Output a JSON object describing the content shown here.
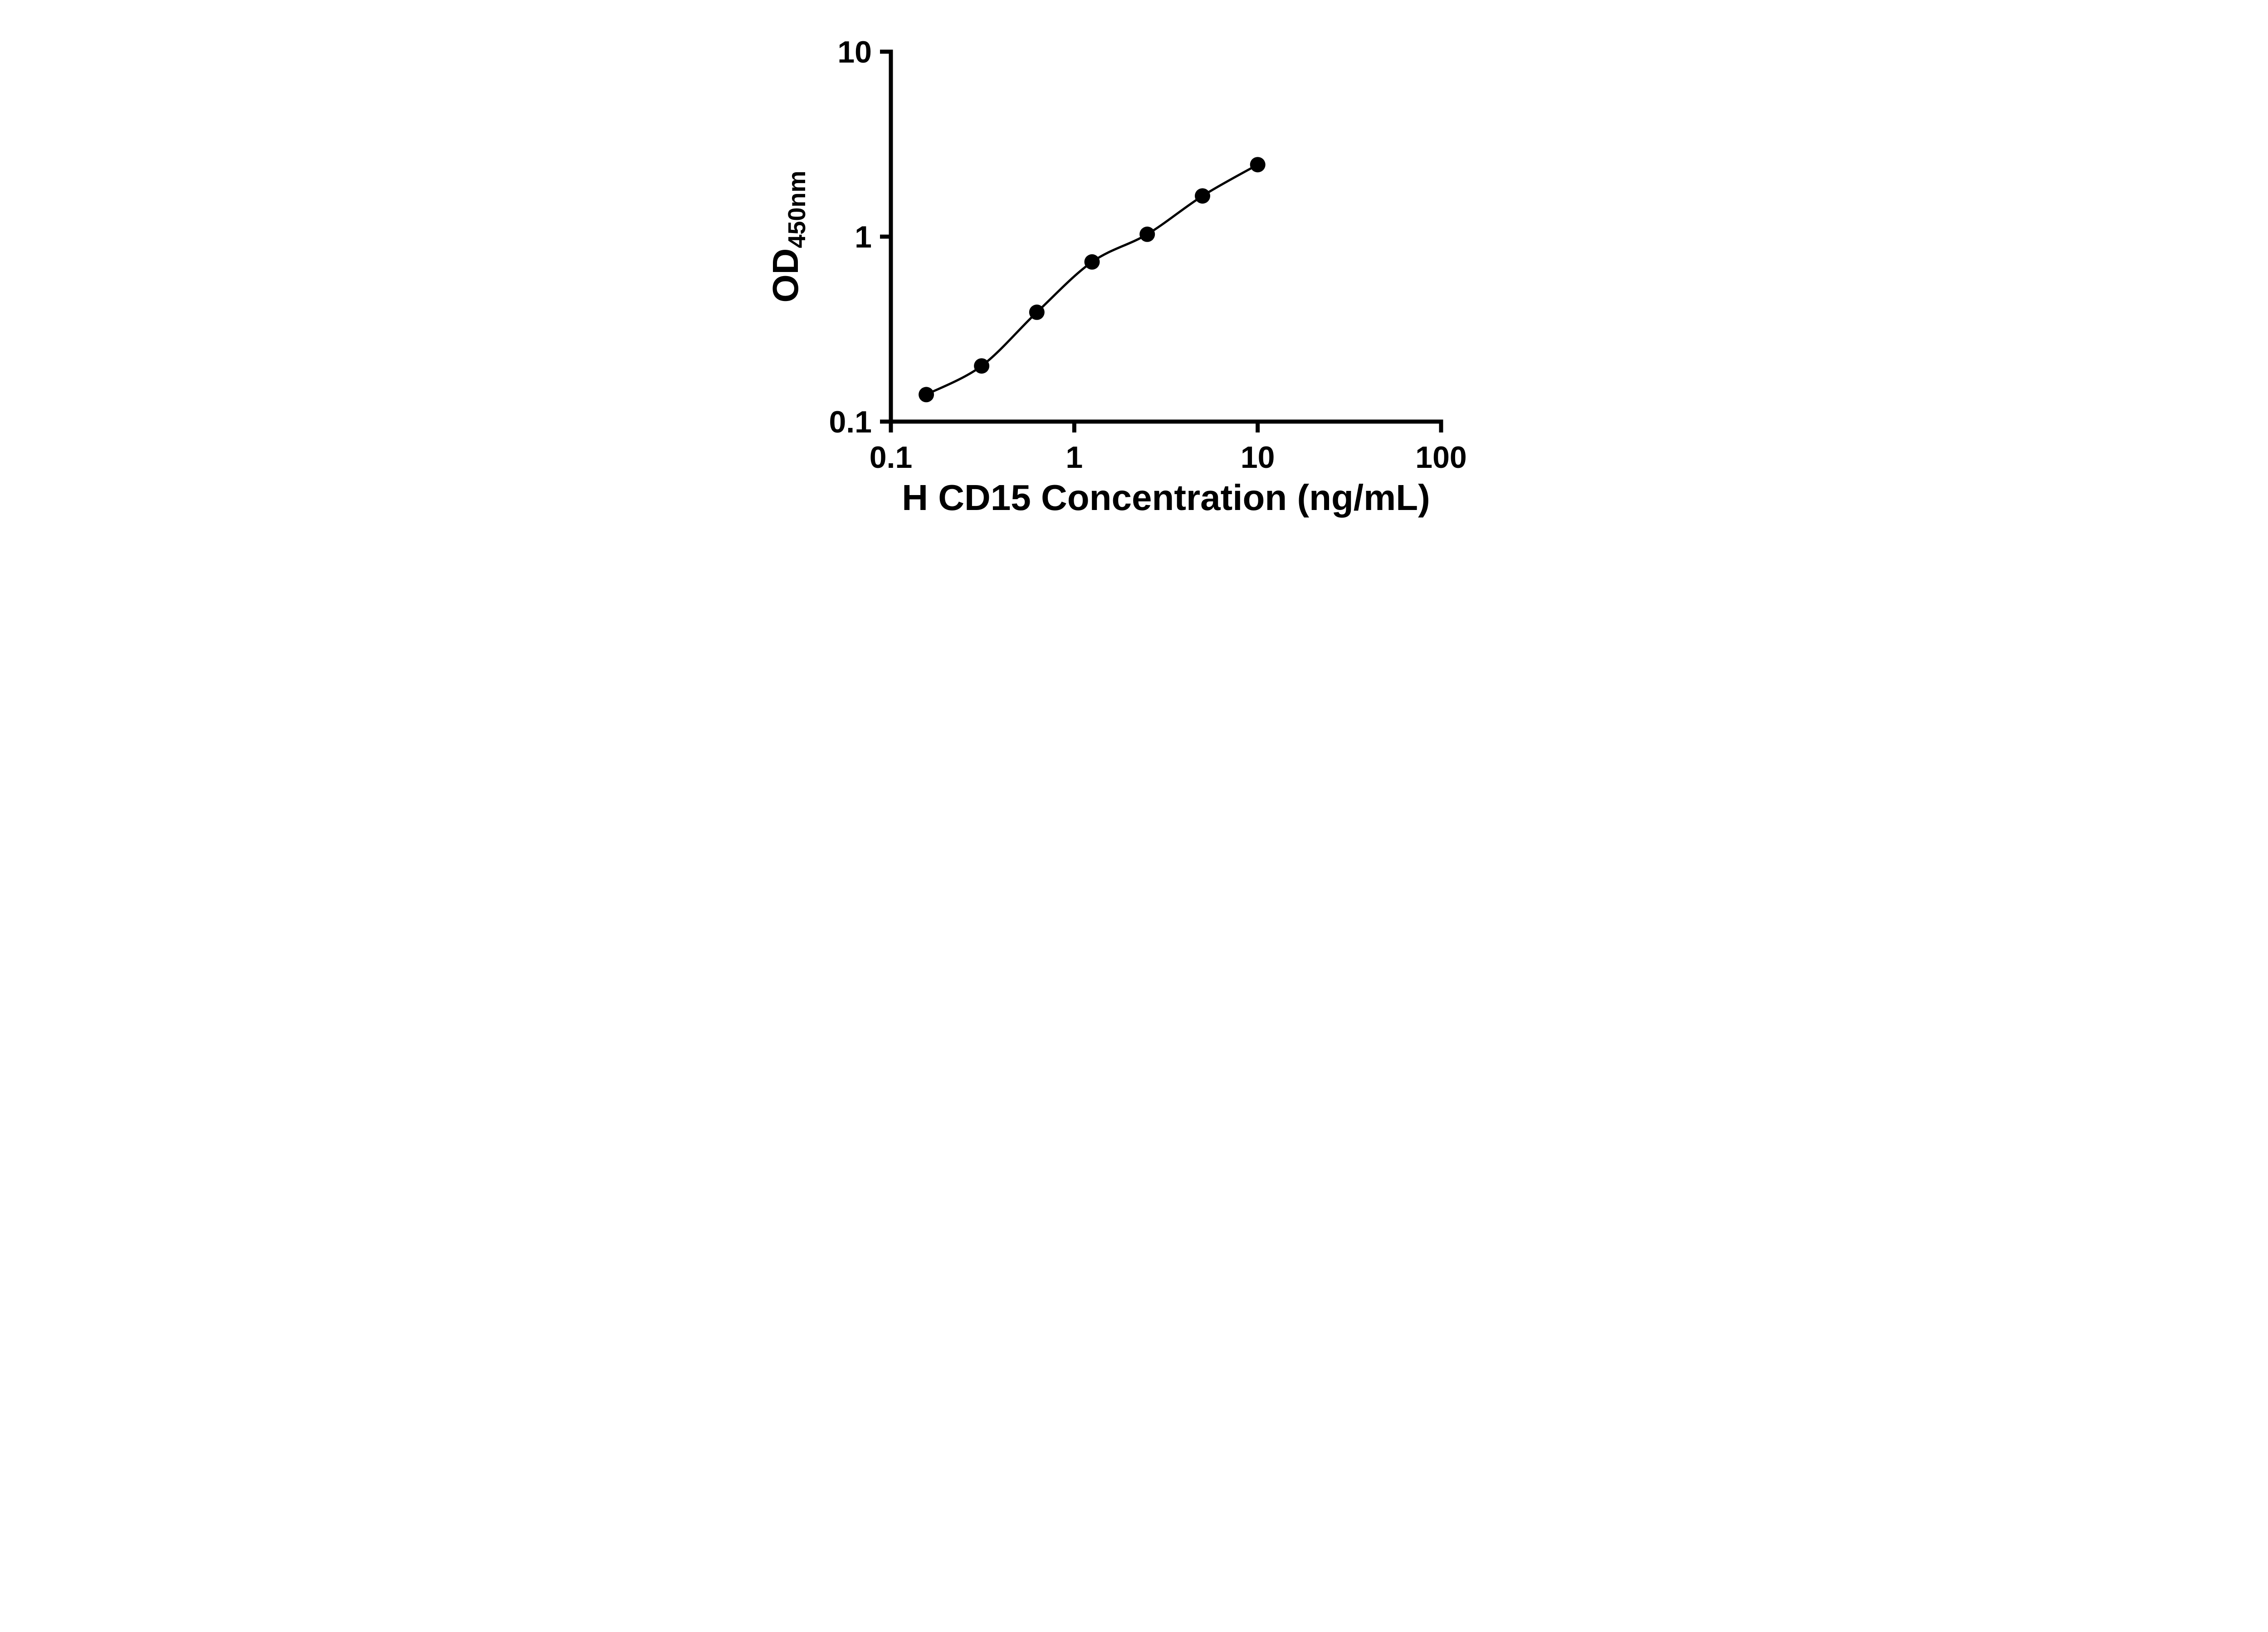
{
  "chart_data": {
    "type": "scatter",
    "title": "",
    "xlabel": "H CD15 Concentration (ng/mL)",
    "ylabel_main": "OD",
    "ylabel_sub": "450nm",
    "x_scale": "log",
    "y_scale": "log",
    "xlim": [
      0.1,
      100
    ],
    "ylim": [
      0.1,
      10
    ],
    "x_ticks": [
      0.1,
      1,
      10,
      100
    ],
    "x_tick_labels": [
      "0.1",
      "1",
      "10",
      "100"
    ],
    "y_ticks": [
      0.1,
      1,
      10
    ],
    "y_tick_labels": [
      "0.1",
      "1",
      "10"
    ],
    "grid": false,
    "legend": null,
    "line_style": "smooth-fit-curve",
    "marker": "filled-circle",
    "marker_color": "#000000",
    "line_color": "#000000",
    "background_color": "#ffffff",
    "points": [
      {
        "x": 0.156,
        "y": 0.14
      },
      {
        "x": 0.3125,
        "y": 0.2
      },
      {
        "x": 0.625,
        "y": 0.39
      },
      {
        "x": 1.25,
        "y": 0.73
      },
      {
        "x": 2.5,
        "y": 1.03
      },
      {
        "x": 5,
        "y": 1.66
      },
      {
        "x": 10,
        "y": 2.45
      }
    ]
  }
}
